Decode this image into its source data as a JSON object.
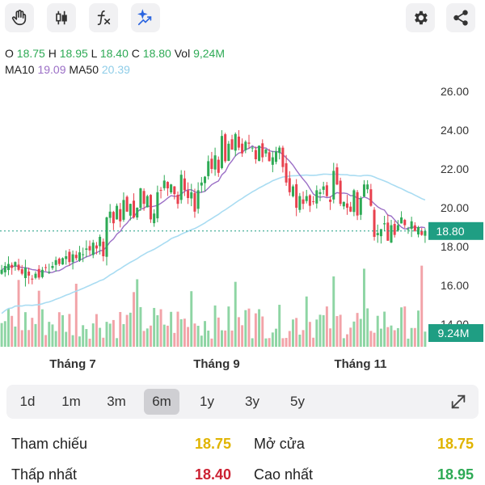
{
  "toolbar": {
    "left_icons": [
      "hand-icon",
      "candlestick-icon",
      "function-icon",
      "ai-sparkle-icon"
    ],
    "right_icons": [
      "gear-icon",
      "share-icon"
    ]
  },
  "ohlc": {
    "o_label": "O",
    "o": "18.75",
    "h_label": "H",
    "h": "18.95",
    "l_label": "L",
    "l": "18.40",
    "c_label": "C",
    "c": "18.80",
    "vol_label": "Vol",
    "vol": "9,24M"
  },
  "ma": {
    "ma10_label": "MA10",
    "ma10": "19.09",
    "ma50_label": "MA50",
    "ma50": "20.39"
  },
  "colors": {
    "up": "#2eaa55",
    "down": "#e8414e",
    "ma10": "#9b6fc6",
    "ma50": "#a9dcf2",
    "up_vol": "#8ed5a4",
    "down_vol": "#f2a3a8",
    "last_price": "#1f9e83"
  },
  "chart_data": {
    "type": "candlestick",
    "price_axis_ticks": [
      "26.00",
      "24.00",
      "22.00",
      "20.00",
      "18.00",
      "16.00",
      "14.00"
    ],
    "x_tick_labels": [
      "Tháng 7",
      "Tháng 9",
      "Tháng 11"
    ],
    "ylim": [
      12,
      26.5
    ],
    "last_price_label": "18.80",
    "last_price": 18.8,
    "last_volume_label": "9.24M",
    "close": [
      16.8,
      17.0,
      17.1,
      16.9,
      17.2,
      16.8,
      16.6,
      16.9,
      16.5,
      16.3,
      16.6,
      16.4,
      16.8,
      16.9,
      16.7,
      17.0,
      17.3,
      17.1,
      17.4,
      17.5,
      17.2,
      17.6,
      17.4,
      17.7,
      17.6,
      17.9,
      17.8,
      18.2,
      17.9,
      18.5,
      17.5,
      19.5,
      19.8,
      19.2,
      20.1,
      19.3,
      20.4,
      19.8,
      20.2,
      19.5,
      20.0,
      21.0,
      20.2,
      20.6,
      19.4,
      19.7,
      20.8,
      20.9,
      21.4,
      21.0,
      21.2,
      20.7,
      20.2,
      21.7,
      20.9,
      20.5,
      20.8,
      19.8,
      20.9,
      21.3,
      21.6,
      22.4,
      22.0,
      22.7,
      21.8,
      23.7,
      22.4,
      23.3,
      23.0,
      23.8,
      23.1,
      22.8,
      23.4,
      23.3,
      23.1,
      22.5,
      23.2,
      22.6,
      23.0,
      22.4,
      22.6,
      22.9,
      23.1,
      22.1,
      21.3,
      20.8,
      21.1,
      20.0,
      20.6,
      20.2,
      20.6,
      20.1,
      20.3,
      20.9,
      20.8,
      21.1,
      20.6,
      20.3,
      21.9,
      21.2,
      20.2,
      20.3,
      20.0,
      19.8,
      20.9,
      19.6,
      20.5,
      21.2,
      21.2,
      20.1,
      18.5,
      18.7,
      18.9,
      19.2,
      18.3,
      19.1,
      18.6,
      19.1,
      19.5,
      19.1,
      18.9,
      19.3,
      18.8,
      19.0,
      18.6,
      18.8
    ]
  },
  "x_axis": {
    "t7": "Tháng 7",
    "t9": "Tháng 9",
    "t11": "Tháng 11"
  },
  "timeframes": {
    "d1": "1d",
    "m1": "1m",
    "m3": "3m",
    "m6": "6m",
    "y1": "1y",
    "y3": "3y",
    "y5": "5y",
    "selected": "6m"
  },
  "stats": {
    "ref_label": "Tham chiếu",
    "ref_value": "18.75",
    "open_label": "Mở cửa",
    "open_value": "18.75",
    "low_label": "Thấp nhất",
    "low_value": "18.40",
    "high_label": "Cao nhất",
    "high_value": "18.95"
  }
}
